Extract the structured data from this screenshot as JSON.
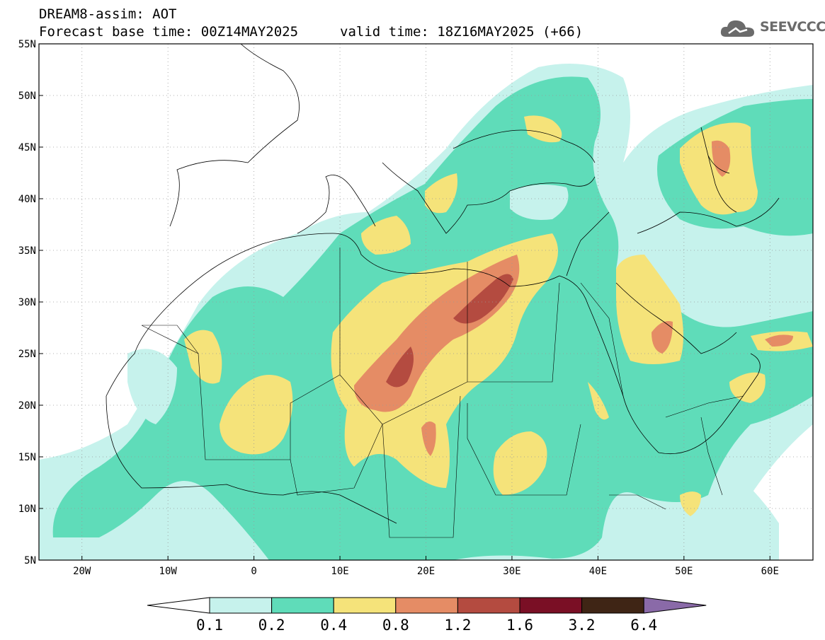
{
  "title": {
    "line1": "DREAM8-assim: AOT",
    "line2": "Forecast base time: 00Z14MAY2025",
    "valid": "valid time: 18Z16MAY2025 (+66)"
  },
  "logo": {
    "text": "SEEVCCC",
    "icon": "cloud-icon",
    "color": "#6b6b6b"
  },
  "map": {
    "lon_range": [
      -25,
      65
    ],
    "lat_range": [
      5,
      55
    ],
    "lon_ticks": [
      "20W",
      "10W",
      "0",
      "10E",
      "20E",
      "30E",
      "40E",
      "50E",
      "60E"
    ],
    "lat_ticks": [
      "5N",
      "10N",
      "15N",
      "20N",
      "25N",
      "30N",
      "35N",
      "40N",
      "45N",
      "50N",
      "55N"
    ],
    "grid": "dotted"
  },
  "colorbar": {
    "labels": [
      "0.1",
      "0.2",
      "0.4",
      "0.8",
      "1.2",
      "1.6",
      "3.2",
      "6.4"
    ],
    "colors": [
      "#ffffff",
      "#c6f2ec",
      "#5fdcb9",
      "#f5e37a",
      "#e58c65",
      "#b44b40",
      "#7a0f25",
      "#3f2515",
      "#8a6aa8"
    ]
  }
}
